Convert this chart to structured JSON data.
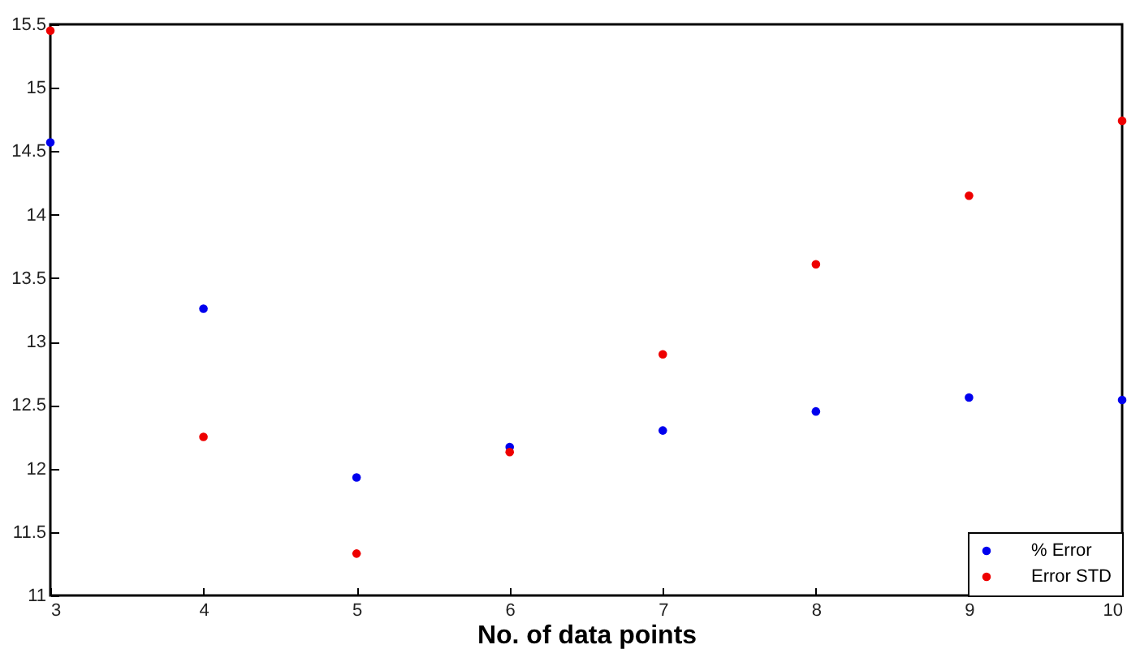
{
  "chart_data": {
    "type": "scatter",
    "xlabel": "No. of data points",
    "x": [
      3,
      4,
      5,
      6,
      7,
      8,
      9,
      10
    ],
    "series": [
      {
        "name": "% Error",
        "color": "#0000ee",
        "values": [
          14.57,
          13.26,
          11.93,
          12.17,
          12.3,
          12.45,
          12.56,
          12.54
        ]
      },
      {
        "name": "Error STD",
        "color": "#ee0000",
        "values": [
          15.45,
          12.25,
          11.33,
          12.13,
          12.9,
          13.61,
          14.15,
          14.74
        ]
      }
    ],
    "xlim": [
      3,
      10
    ],
    "xticks": [
      3,
      4,
      5,
      6,
      7,
      8,
      9,
      10
    ],
    "ylim": [
      11,
      15.5
    ],
    "yticks": [
      11,
      11.5,
      12,
      12.5,
      13,
      13.5,
      14,
      14.5,
      15,
      15.5
    ],
    "grid": false,
    "legend": "bottom right",
    "marker": "circle"
  }
}
